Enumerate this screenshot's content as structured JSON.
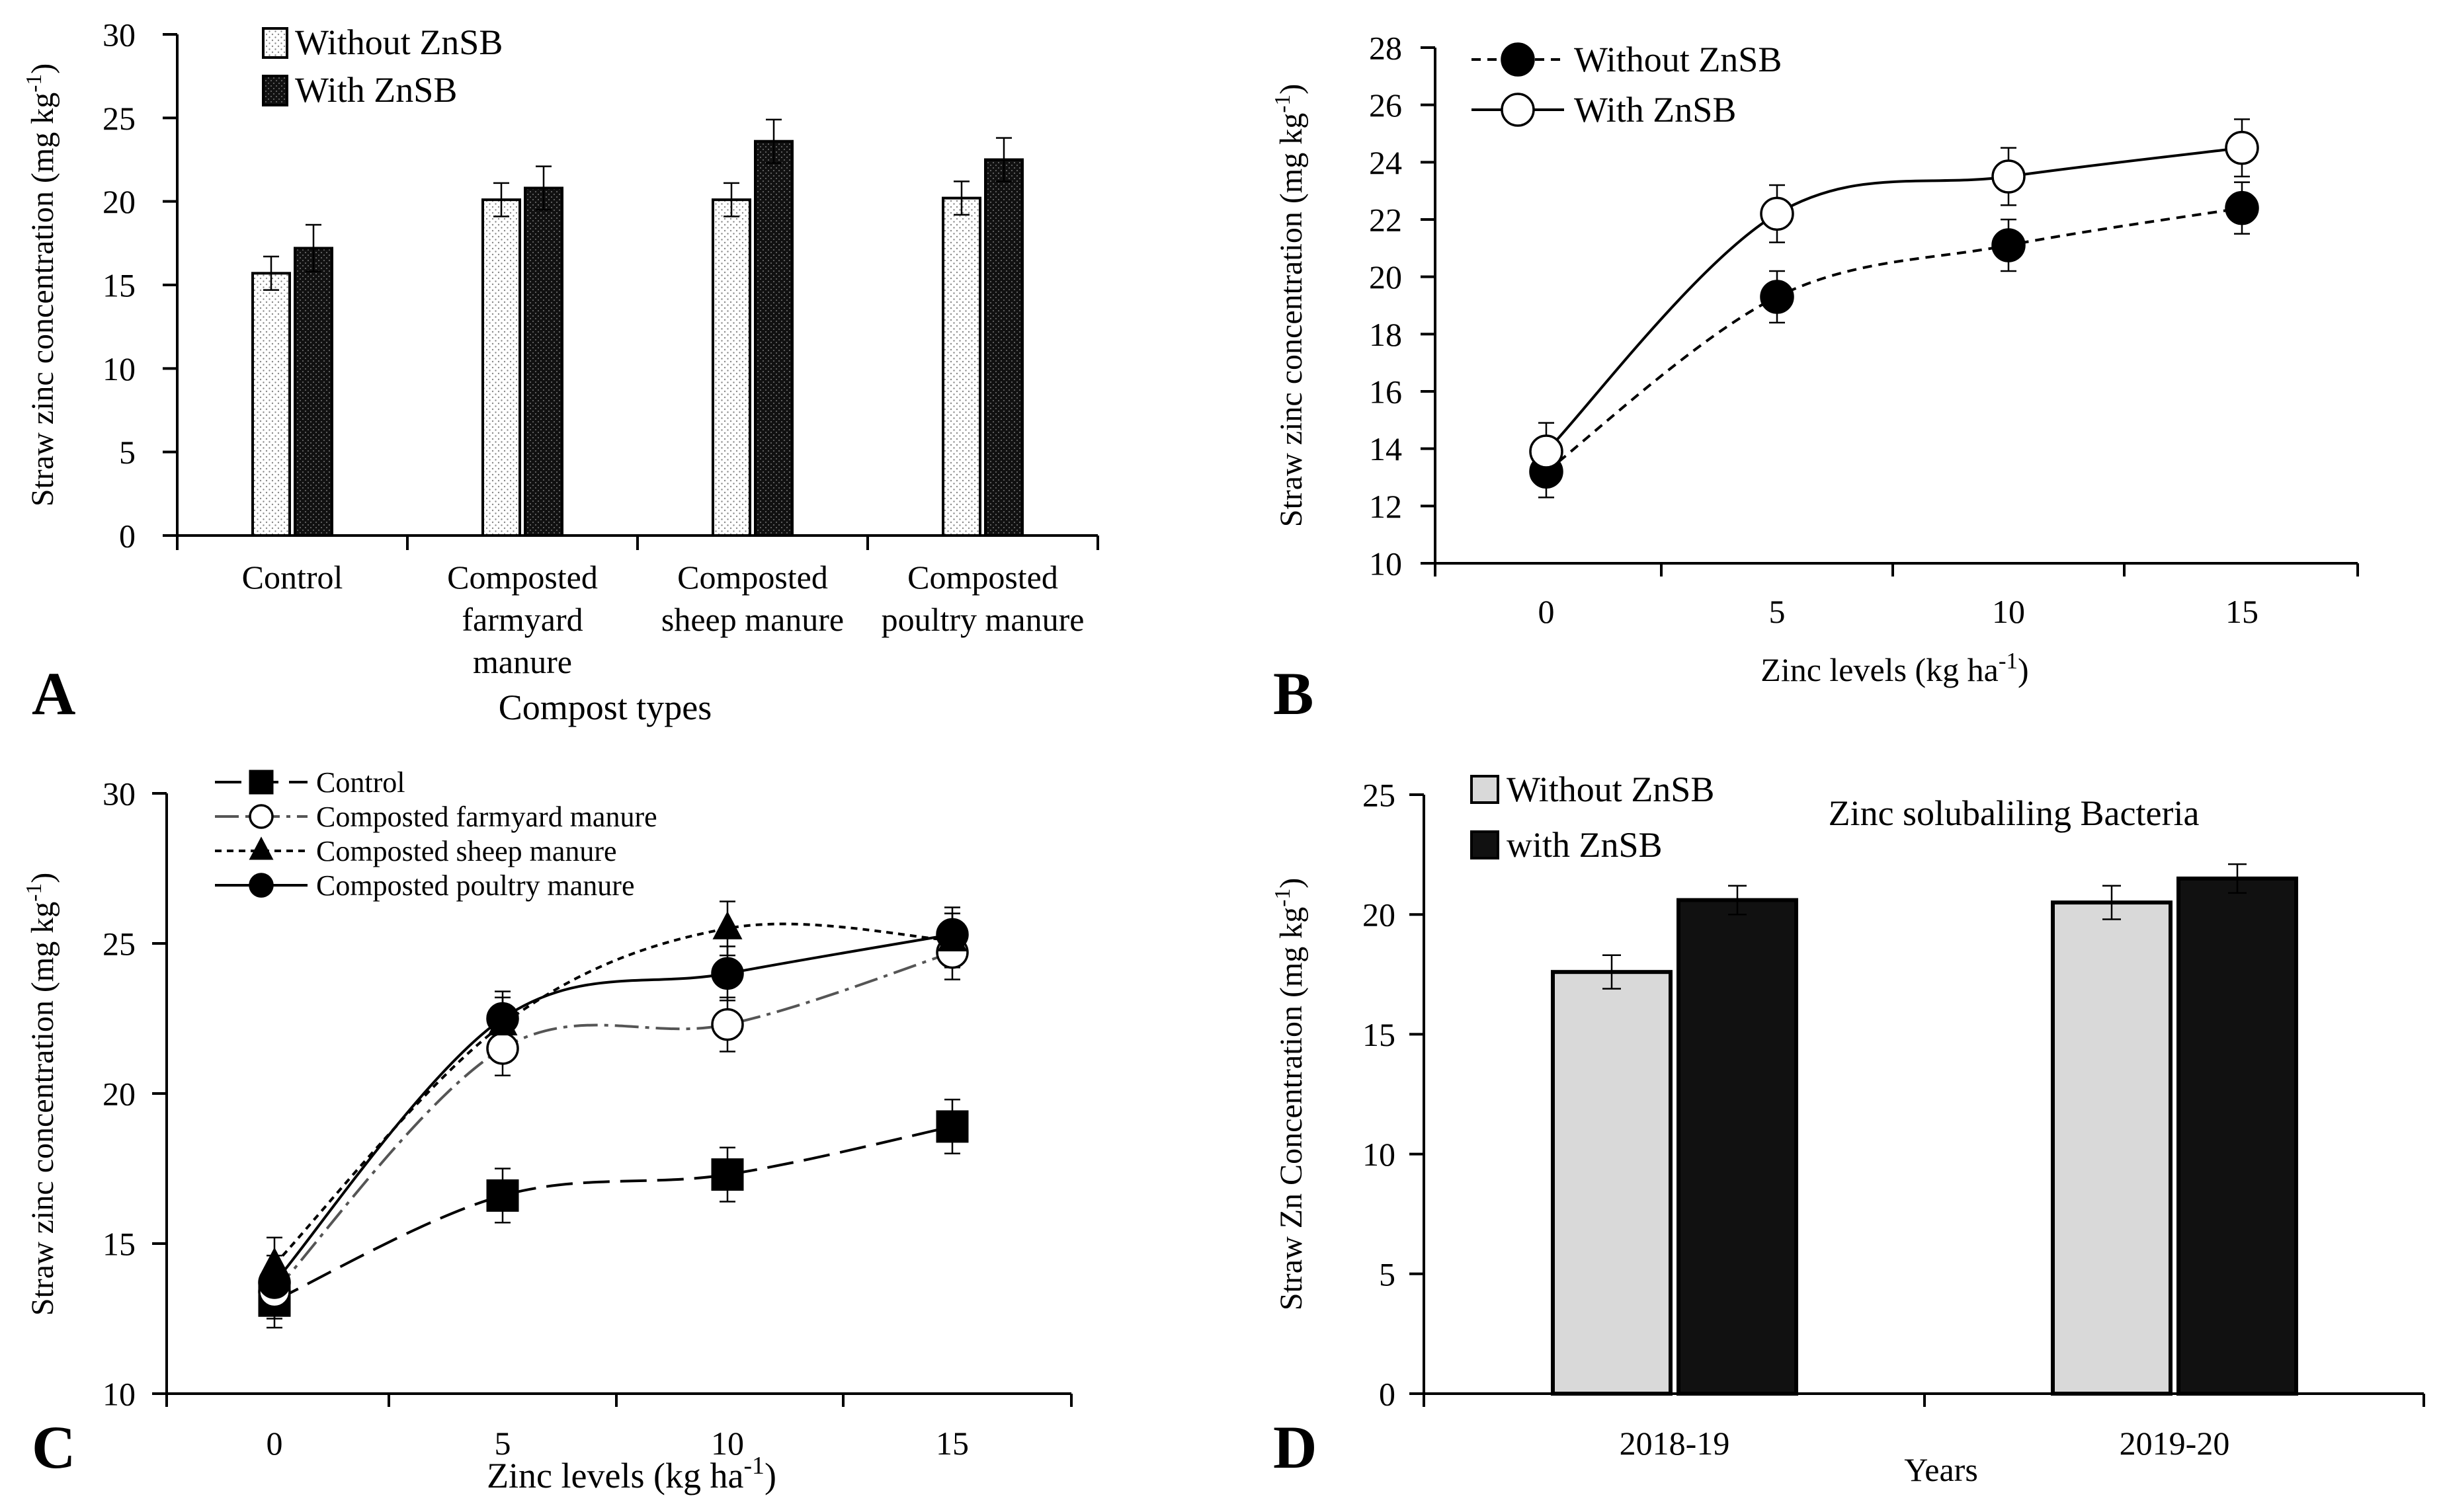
{
  "panel_labels": {
    "a": "A",
    "b": "B",
    "c": "C",
    "d": "D"
  },
  "chart_data": [
    {
      "panel": "A",
      "type": "bar",
      "title": "",
      "xlabel": "Compost types",
      "ylabel": "Straw zinc concentration (mg kg",
      "ylabel_sup": "-1",
      "ylabel_end": ")",
      "ylim": [
        0,
        30
      ],
      "yticks": [
        0,
        5,
        10,
        15,
        20,
        25,
        30
      ],
      "categories": [
        [
          "Control"
        ],
        [
          "Composted",
          "farmyard",
          "manure"
        ],
        [
          "Composted",
          "sheep manure"
        ],
        [
          "Composted",
          "poultry manure"
        ]
      ],
      "series": [
        {
          "name": "Without ZnSB",
          "values": [
            15.7,
            20.1,
            20.1,
            20.2
          ],
          "errors": [
            1.0,
            1.0,
            1.0,
            1.0
          ]
        },
        {
          "name": "With ZnSB",
          "values": [
            17.2,
            20.8,
            23.6,
            22.5
          ],
          "errors": [
            1.4,
            1.3,
            1.3,
            1.3
          ]
        }
      ],
      "legend": "top-left",
      "grid": false
    },
    {
      "panel": "B",
      "type": "line",
      "title": "",
      "xlabel": "Zinc levels (kg ha",
      "xlabel_sup": "-1",
      "xlabel_end": ")",
      "ylabel": "Straw zinc concentration (mg kg",
      "ylabel_sup": "-1",
      "ylabel_end": ")",
      "x": [
        0,
        5,
        10,
        15
      ],
      "ylim": [
        10,
        28
      ],
      "yticks": [
        10,
        12,
        14,
        16,
        18,
        20,
        22,
        24,
        26,
        28
      ],
      "series": [
        {
          "name": "Without ZnSB",
          "values": [
            13.2,
            19.3,
            21.1,
            22.4
          ],
          "errors": [
            0.9,
            0.9,
            0.9,
            0.9
          ]
        },
        {
          "name": "With ZnSB",
          "values": [
            13.9,
            22.2,
            23.5,
            24.5
          ],
          "errors": [
            1.0,
            1.0,
            1.0,
            1.0
          ]
        }
      ],
      "legend": "top-left",
      "grid": false
    },
    {
      "panel": "C",
      "type": "line",
      "title": "",
      "xlabel": "Zinc levels (kg ha",
      "xlabel_sup": "-1",
      "xlabel_end": ")",
      "ylabel": "Straw zinc concentration (mg kg",
      "ylabel_sup": "-1",
      "ylabel_end": ")",
      "x": [
        0,
        5,
        10,
        15
      ],
      "ylim": [
        10,
        30
      ],
      "yticks": [
        10,
        15,
        20,
        25,
        30
      ],
      "series": [
        {
          "name": "Control",
          "values": [
            13.1,
            16.6,
            17.3,
            18.9
          ],
          "errors": [
            0.9,
            0.9,
            0.9,
            0.9
          ]
        },
        {
          "name": "Composted farmyard manure",
          "values": [
            13.4,
            21.5,
            22.3,
            24.7
          ],
          "errors": [
            0.9,
            0.9,
            0.9,
            0.9
          ]
        },
        {
          "name": "Composted sheep manure",
          "values": [
            14.3,
            22.3,
            25.5,
            25.1
          ],
          "errors": [
            0.9,
            0.9,
            0.9,
            0.9
          ]
        },
        {
          "name": "Composted poultry manure",
          "values": [
            13.7,
            22.5,
            24.0,
            25.3
          ],
          "errors": [
            0.9,
            0.9,
            0.9,
            0.9
          ]
        }
      ],
      "legend": "top-left",
      "grid": false
    },
    {
      "panel": "D",
      "type": "bar",
      "title": "Zinc solubaliling Bacteria",
      "xlabel": "Years",
      "ylabel": "Straw Zn Concentration (mg kg",
      "ylabel_sup": "-1",
      "ylabel_end": ")",
      "ylim": [
        0,
        25
      ],
      "yticks": [
        0,
        5,
        10,
        15,
        20,
        25
      ],
      "categories": [
        [
          "2018-19"
        ],
        [
          "2019-20"
        ]
      ],
      "series": [
        {
          "name": "Without ZnSB",
          "values": [
            17.6,
            20.5
          ],
          "errors": [
            0.7,
            0.7
          ]
        },
        {
          "name": "with ZnSB",
          "values": [
            20.6,
            21.5
          ],
          "errors": [
            0.6,
            0.6
          ]
        }
      ],
      "legend": "top-left",
      "grid": false
    }
  ]
}
